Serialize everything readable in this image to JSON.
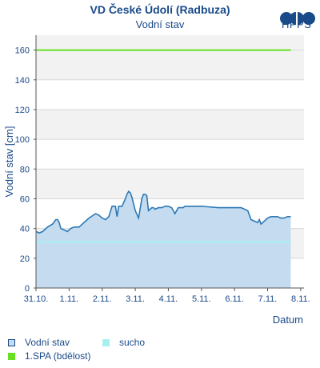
{
  "header": {
    "title": "VD České Údolí (Radbuza)",
    "subtitle": "Vodní stav",
    "logo_text": "HPPS"
  },
  "colors": {
    "axis_text": "#1a4a8a",
    "series_line": "#2d78b4",
    "series_fill": "#c5dcf0",
    "sucho": "#a8f0f0",
    "spa1": "#66e020",
    "band": "#f2f2f2"
  },
  "chart_data": {
    "type": "area",
    "title": "Vodní stav",
    "xlabel": "Datum",
    "ylabel": "Vodní stav [cm]",
    "ylim": [
      0,
      170
    ],
    "xlim": [
      0,
      8.1
    ],
    "yticks": [
      0,
      20,
      40,
      60,
      80,
      100,
      120,
      140,
      160
    ],
    "xticks": [
      {
        "pos": 0,
        "label": "31.10."
      },
      {
        "pos": 1,
        "label": "1.11."
      },
      {
        "pos": 2,
        "label": "2.11."
      },
      {
        "pos": 3,
        "label": "3.11."
      },
      {
        "pos": 4,
        "label": "4.11."
      },
      {
        "pos": 5,
        "label": "5.11."
      },
      {
        "pos": 6,
        "label": "6.11."
      },
      {
        "pos": 7,
        "label": "7.11."
      },
      {
        "pos": 8,
        "label": "8.11."
      }
    ],
    "grid": true,
    "series": [
      {
        "name": "Vodní stav",
        "x": [
          0.0,
          0.1,
          0.2,
          0.35,
          0.5,
          0.6,
          0.65,
          0.7,
          0.75,
          0.85,
          0.95,
          1.05,
          1.15,
          1.3,
          1.5,
          1.6,
          1.8,
          1.9,
          2.0,
          2.1,
          2.2,
          2.3,
          2.35,
          2.4,
          2.45,
          2.5,
          2.6,
          2.7,
          2.75,
          2.8,
          2.85,
          2.9,
          3.0,
          3.1,
          3.2,
          3.25,
          3.3,
          3.35,
          3.4,
          3.45,
          3.5,
          3.55,
          3.6,
          3.7,
          3.8,
          3.9,
          4.0,
          4.1,
          4.2,
          4.3,
          4.4,
          4.45,
          4.5,
          4.7,
          5.0,
          5.5,
          6.0,
          6.2,
          6.4,
          6.5,
          6.6,
          6.7,
          6.75,
          6.8,
          6.9,
          7.0,
          7.1,
          7.2,
          7.3,
          7.4,
          7.5,
          7.6,
          7.7
        ],
        "values": [
          38,
          37,
          38,
          41,
          43,
          46,
          46,
          44,
          40,
          39,
          38,
          40,
          41,
          41,
          45,
          47,
          50,
          49,
          47,
          46,
          48,
          55,
          55,
          55,
          48,
          55,
          55,
          60,
          63,
          65,
          64,
          61,
          52,
          47,
          60,
          63,
          63,
          62,
          52,
          53,
          54,
          54,
          53,
          54,
          54,
          55,
          55,
          54,
          50,
          54,
          54,
          54,
          55,
          55,
          55,
          54,
          54,
          54,
          52,
          46,
          45,
          44,
          46,
          43,
          45,
          47,
          48,
          48,
          48,
          47,
          47,
          48,
          48
        ]
      }
    ],
    "lines": [
      {
        "name": "sucho",
        "value": 31
      },
      {
        "name": "1.SPA (bdělost)",
        "value": 160
      }
    ]
  },
  "legend": [
    {
      "label": "Vodní stav"
    },
    {
      "label": "sucho"
    },
    {
      "label": "1.SPA (bdělost)"
    }
  ]
}
